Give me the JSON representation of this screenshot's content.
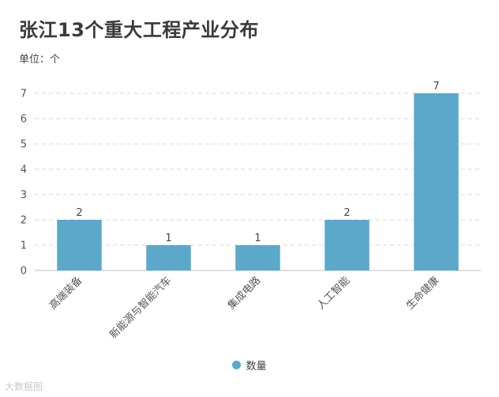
{
  "chart_data": {
    "type": "bar",
    "title": "张江13个重大工程产业分布",
    "subtitle": "单位：个",
    "categories": [
      "高端装备",
      "新能源与智能汽车",
      "集成电路",
      "人工智能",
      "生命健康"
    ],
    "series": [
      {
        "name": "数量",
        "values": [
          2,
          1,
          1,
          2,
          7
        ]
      }
    ],
    "y_ticks": [
      "0",
      "1",
      "2",
      "3",
      "4",
      "5",
      "6",
      "7"
    ],
    "ylim": [
      0,
      7
    ],
    "grid": true,
    "legend_position": "bottom-center",
    "bar_color": "#5ba8ca"
  },
  "watermark": "大数据图"
}
